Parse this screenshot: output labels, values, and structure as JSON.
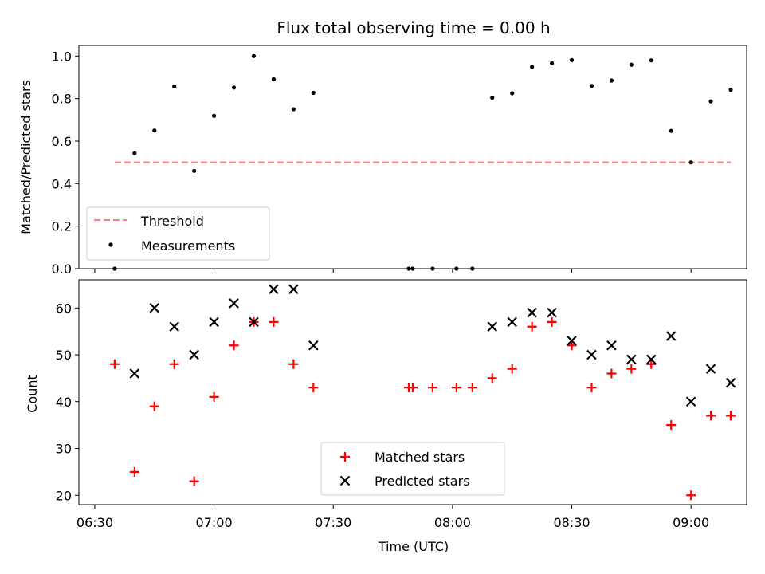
{
  "chart_data": [
    {
      "type": "scatter",
      "title": "Flux total observing time = 0.00 h",
      "xlabel": "",
      "ylabel": "Matched/Predicted stars",
      "ylim": [
        0,
        1.05
      ],
      "yticks": [
        "0.0",
        "0.2",
        "0.4",
        "0.6",
        "0.8",
        "1.0"
      ],
      "ytick_values": [
        0,
        0.2,
        0.4,
        0.6,
        0.8,
        1.0
      ],
      "threshold": {
        "name": "Threshold",
        "value": 0.5,
        "x_range": [
          "06:35",
          "09:10"
        ],
        "color": "#ff7f7f"
      },
      "legend": {
        "placement": "lower-left",
        "entries": [
          "Threshold",
          "Measurements"
        ]
      },
      "series": [
        {
          "name": "Measurements",
          "color": "#000000",
          "points": [
            [
              "06:35",
              0.0
            ],
            [
              "06:40",
              0.543
            ],
            [
              "06:45",
              0.65
            ],
            [
              "06:50",
              0.857
            ],
            [
              "06:55",
              0.46
            ],
            [
              "07:00",
              0.719
            ],
            [
              "07:05",
              0.852
            ],
            [
              "07:10",
              1.0
            ],
            [
              "07:15",
              0.891
            ],
            [
              "07:20",
              0.75
            ],
            [
              "07:25",
              0.827
            ],
            [
              "07:49",
              0.0
            ],
            [
              "07:50",
              0.0
            ],
            [
              "07:55",
              0.0
            ],
            [
              "08:01",
              0.0
            ],
            [
              "08:05",
              0.0
            ],
            [
              "08:10",
              0.804
            ],
            [
              "08:15",
              0.825
            ],
            [
              "08:20",
              0.949
            ],
            [
              "08:25",
              0.966
            ],
            [
              "08:30",
              0.981
            ],
            [
              "08:35",
              0.86
            ],
            [
              "08:40",
              0.885
            ],
            [
              "08:45",
              0.959
            ],
            [
              "08:50",
              0.98
            ],
            [
              "08:55",
              0.648
            ],
            [
              "09:00",
              0.5
            ],
            [
              "09:05",
              0.787
            ],
            [
              "09:10",
              0.841
            ]
          ]
        }
      ]
    },
    {
      "type": "scatter",
      "xlabel": "Time (UTC)",
      "ylabel": "Count",
      "ylim": [
        18,
        66
      ],
      "yticks": [
        "20",
        "30",
        "40",
        "50",
        "60"
      ],
      "ytick_values": [
        20,
        30,
        40,
        50,
        60
      ],
      "xlim": [
        "06:26",
        "09:14"
      ],
      "xticks": [
        "06:30",
        "07:00",
        "07:30",
        "08:00",
        "08:30",
        "09:00"
      ],
      "legend": {
        "placement": "bottom-center",
        "entries": [
          "Matched stars",
          "Predicted stars"
        ]
      },
      "series": [
        {
          "name": "Matched stars",
          "marker": "plus",
          "color": "#ff0000",
          "points": [
            [
              "06:35",
              48
            ],
            [
              "06:40",
              25
            ],
            [
              "06:45",
              39
            ],
            [
              "06:50",
              48
            ],
            [
              "06:55",
              23
            ],
            [
              "07:00",
              41
            ],
            [
              "07:05",
              52
            ],
            [
              "07:10",
              57
            ],
            [
              "07:15",
              57
            ],
            [
              "07:20",
              48
            ],
            [
              "07:25",
              43
            ],
            [
              "07:49",
              43
            ],
            [
              "07:50",
              43
            ],
            [
              "07:55",
              43
            ],
            [
              "08:01",
              43
            ],
            [
              "08:05",
              43
            ],
            [
              "08:10",
              45
            ],
            [
              "08:15",
              47
            ],
            [
              "08:20",
              56
            ],
            [
              "08:25",
              57
            ],
            [
              "08:30",
              52
            ],
            [
              "08:35",
              43
            ],
            [
              "08:40",
              46
            ],
            [
              "08:45",
              47
            ],
            [
              "08:50",
              48
            ],
            [
              "08:55",
              35
            ],
            [
              "09:00",
              20
            ],
            [
              "09:05",
              37
            ],
            [
              "09:10",
              37
            ]
          ]
        },
        {
          "name": "Predicted stars",
          "marker": "x",
          "color": "#000000",
          "points": [
            [
              "06:40",
              46
            ],
            [
              "06:45",
              60
            ],
            [
              "06:50",
              56
            ],
            [
              "06:55",
              50
            ],
            [
              "07:00",
              57
            ],
            [
              "07:05",
              61
            ],
            [
              "07:10",
              57
            ],
            [
              "07:15",
              64
            ],
            [
              "07:20",
              64
            ],
            [
              "07:25",
              52
            ],
            [
              "08:10",
              56
            ],
            [
              "08:15",
              57
            ],
            [
              "08:20",
              59
            ],
            [
              "08:25",
              59
            ],
            [
              "08:30",
              53
            ],
            [
              "08:35",
              50
            ],
            [
              "08:40",
              52
            ],
            [
              "08:45",
              49
            ],
            [
              "08:50",
              49
            ],
            [
              "08:55",
              54
            ],
            [
              "09:00",
              40
            ],
            [
              "09:05",
              47
            ],
            [
              "09:10",
              44
            ]
          ]
        }
      ]
    }
  ]
}
